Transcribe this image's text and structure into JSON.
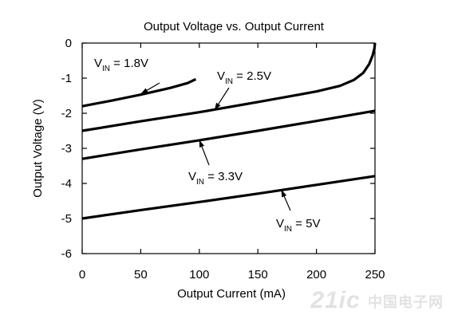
{
  "chart_data": {
    "type": "line",
    "title": "Output Voltage  vs. Output Current",
    "xlabel": "Output Current (mA)",
    "ylabel": "Output Voltage (V)",
    "xlim": [
      0,
      250
    ],
    "ylim": [
      -6,
      0
    ],
    "xticks": [
      0,
      50,
      100,
      150,
      200,
      250
    ],
    "yticks": [
      0,
      -1,
      -2,
      -3,
      -4,
      -5,
      -6
    ],
    "grid": false,
    "series": [
      {
        "label_main": "V",
        "label_sub": "IN",
        "label_rest": " = 1.8V",
        "x": [
          0,
          25,
          50,
          75,
          90,
          97
        ],
        "y": [
          -1.8,
          -1.64,
          -1.47,
          -1.28,
          -1.14,
          -1.03
        ]
      },
      {
        "label_main": "V",
        "label_sub": "IN",
        "label_rest": " = 2.5V",
        "x": [
          0,
          50,
          100,
          150,
          200,
          220,
          232,
          240,
          245,
          248,
          249.5,
          250
        ],
        "y": [
          -2.5,
          -2.23,
          -1.97,
          -1.68,
          -1.38,
          -1.22,
          -1.05,
          -0.85,
          -0.6,
          -0.35,
          -0.15,
          0
        ]
      },
      {
        "label_main": "V",
        "label_sub": "IN",
        "label_rest": " = 3.3V",
        "x": [
          0,
          50,
          100,
          150,
          200,
          250
        ],
        "y": [
          -3.3,
          -3.03,
          -2.77,
          -2.5,
          -2.22,
          -1.93
        ]
      },
      {
        "label_main": "V",
        "label_sub": "IN",
        "label_rest": " = 5V",
        "x": [
          0,
          50,
          100,
          150,
          200,
          250
        ],
        "y": [
          -5.0,
          -4.76,
          -4.53,
          -4.29,
          -4.04,
          -3.79
        ]
      }
    ]
  },
  "watermark": {
    "text": "21ic",
    "cn_text": "中国电子网"
  }
}
